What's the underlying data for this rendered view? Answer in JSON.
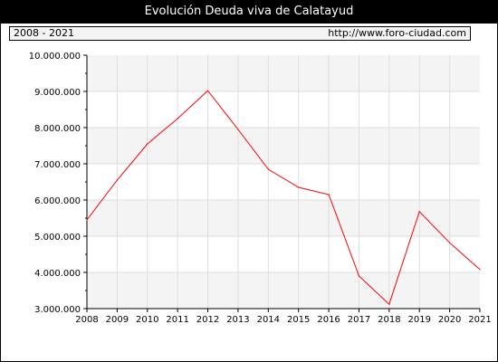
{
  "title": "Evolución Deuda viva de Calatayud",
  "range_label": "2008 - 2021",
  "source_url": "http://www.foro-ciudad.com",
  "chart_data": {
    "type": "line",
    "x": [
      2008,
      2009,
      2010,
      2011,
      2012,
      2013,
      2014,
      2015,
      2016,
      2017,
      2018,
      2019,
      2020,
      2021
    ],
    "series": [
      {
        "values": [
          5450000,
          6550000,
          7550000,
          8250000,
          9020000,
          7950000,
          6850000,
          6350000,
          6150000,
          3900000,
          3120000,
          5680000,
          4820000,
          4080000
        ],
        "color": "#ff0000"
      }
    ],
    "y_ticks": [
      "3.000.000",
      "4.000.000",
      "5.000.000",
      "6.000.000",
      "7.000.000",
      "8.000.000",
      "9.000.000",
      "10.000.000"
    ],
    "ylim": [
      3000000,
      10000000
    ],
    "grid": true,
    "band_color": "#f4f4f4",
    "grid_color": "#dddddd"
  }
}
